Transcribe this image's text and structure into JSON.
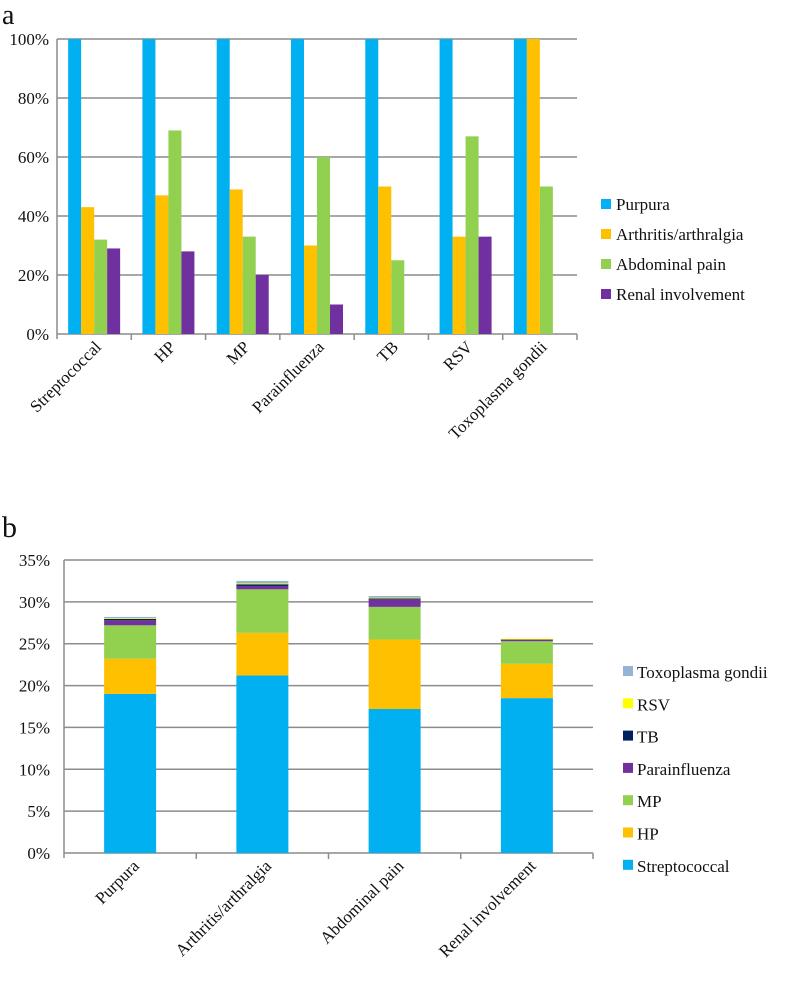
{
  "chart_data": [
    {
      "panel_label": "a",
      "type": "bar",
      "categories": [
        "Streptococcal",
        "HP",
        "MP",
        "Parainfluenza",
        "TB",
        "RSV",
        "Toxoplasma gondii"
      ],
      "series": [
        {
          "name": "Purpura",
          "color": "#00B0F0",
          "values": [
            100,
            100,
            100,
            100,
            100,
            100,
            100
          ]
        },
        {
          "name": "Arthritis/arthralgia",
          "color": "#FFC000",
          "values": [
            43,
            47,
            49,
            30,
            50,
            33,
            100
          ]
        },
        {
          "name": "Abdominal pain",
          "color": "#92D050",
          "values": [
            32,
            69,
            33,
            60,
            25,
            67,
            50
          ]
        },
        {
          "name": "Renal involvement",
          "color": "#7030A0",
          "values": [
            29,
            28,
            20,
            10,
            0,
            33,
            0
          ]
        }
      ],
      "yticks": [
        "0%",
        "20%",
        "40%",
        "60%",
        "80%",
        "100%"
      ],
      "ylim": [
        0,
        100
      ],
      "grid": true,
      "legend": "right"
    },
    {
      "panel_label": "b",
      "type": "bar",
      "stacked": true,
      "categories": [
        "Purpura",
        "Arthritis/arthralgia",
        "Abdominal pain",
        "Renal involvement"
      ],
      "series": [
        {
          "name": "Streptococcal",
          "color": "#00B0F0",
          "values": [
            19.0,
            21.2,
            17.2,
            18.5
          ]
        },
        {
          "name": "HP",
          "color": "#FFC000",
          "values": [
            4.2,
            5.1,
            8.3,
            4.1
          ]
        },
        {
          "name": "MP",
          "color": "#92D050",
          "values": [
            4.0,
            5.2,
            3.9,
            2.7
          ]
        },
        {
          "name": "Parainfluenza",
          "color": "#7030A0",
          "values": [
            0.6,
            0.4,
            0.9,
            0.2
          ]
        },
        {
          "name": "TB",
          "color": "#002060",
          "values": [
            0.2,
            0.2,
            0.1,
            0.0
          ]
        },
        {
          "name": "RSV",
          "color": "#FFFF00",
          "values": [
            0.05,
            0.1,
            0.1,
            0.1
          ]
        },
        {
          "name": "Toxoplasma gondii",
          "color": "#95B3D7",
          "values": [
            0.15,
            0.3,
            0.2,
            0.0
          ]
        }
      ],
      "yticks": [
        "0%",
        "5%",
        "10%",
        "15%",
        "20%",
        "25%",
        "30%",
        "35%"
      ],
      "ylim": [
        0,
        35
      ],
      "grid": true,
      "legend": "right"
    }
  ]
}
